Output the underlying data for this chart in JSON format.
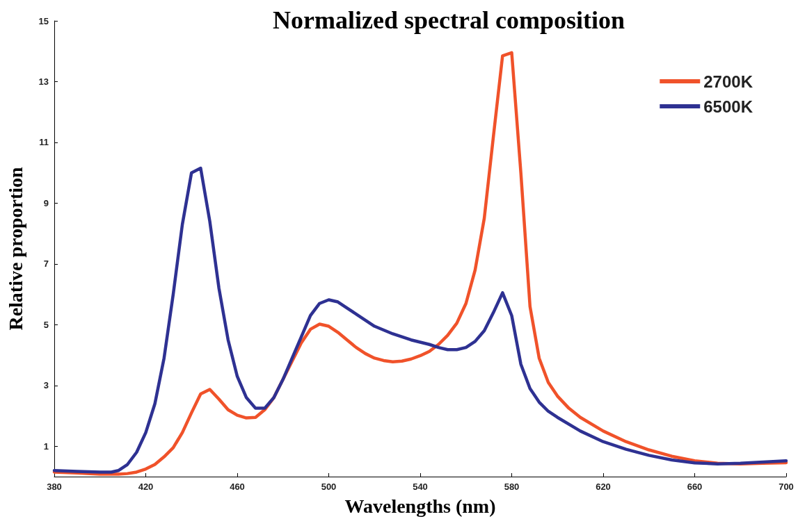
{
  "chart_data": {
    "type": "line",
    "title": "Normalized spectral composition",
    "xlabel": "Wavelengths (nm)",
    "ylabel": "Relative proportion",
    "xlim": [
      380,
      700
    ],
    "xticks": [
      380,
      420,
      460,
      500,
      540,
      580,
      620,
      660,
      700
    ],
    "ylim": [
      0,
      15
    ],
    "yticks": [
      1,
      3,
      5,
      7,
      9,
      11,
      13,
      15
    ],
    "grid": false,
    "legend": "top right",
    "marker": "none",
    "line_style": "solid",
    "series": [
      {
        "name": "2700K",
        "color": "#f0522a",
        "x": [
          380,
          390,
          400,
          408,
          412,
          416,
          420,
          424,
          428,
          432,
          436,
          440,
          444,
          448,
          452,
          456,
          460,
          464,
          468,
          472,
          476,
          480,
          484,
          488,
          492,
          496,
          500,
          504,
          508,
          512,
          516,
          520,
          524,
          528,
          532,
          536,
          540,
          544,
          548,
          552,
          556,
          560,
          564,
          568,
          572,
          576,
          580,
          584,
          588,
          592,
          596,
          600,
          605,
          610,
          620,
          630,
          640,
          650,
          660,
          670,
          680,
          690,
          700
        ],
        "values": [
          0.15,
          0.12,
          0.08,
          0.08,
          0.1,
          0.15,
          0.25,
          0.4,
          0.65,
          0.95,
          1.45,
          2.1,
          2.72,
          2.87,
          2.55,
          2.2,
          2.02,
          1.93,
          1.95,
          2.2,
          2.6,
          3.2,
          3.8,
          4.4,
          4.85,
          5.02,
          4.95,
          4.75,
          4.5,
          4.25,
          4.05,
          3.9,
          3.82,
          3.78,
          3.8,
          3.87,
          3.98,
          4.12,
          4.35,
          4.65,
          5.05,
          5.7,
          6.8,
          8.5,
          11.2,
          13.85,
          13.95,
          10.0,
          5.6,
          3.9,
          3.1,
          2.65,
          2.25,
          1.95,
          1.5,
          1.15,
          0.88,
          0.67,
          0.52,
          0.44,
          0.42,
          0.44,
          0.46
        ]
      },
      {
        "name": "6500K",
        "color": "#2e3192",
        "x": [
          380,
          390,
          400,
          405,
          408,
          412,
          416,
          420,
          424,
          428,
          432,
          436,
          440,
          444,
          448,
          452,
          456,
          460,
          464,
          468,
          472,
          476,
          480,
          484,
          488,
          492,
          496,
          500,
          504,
          508,
          512,
          516,
          520,
          528,
          536,
          544,
          548,
          552,
          556,
          560,
          564,
          568,
          572,
          576,
          580,
          584,
          588,
          592,
          596,
          600,
          610,
          620,
          630,
          640,
          650,
          660,
          670,
          680,
          690,
          700
        ],
        "values": [
          0.2,
          0.17,
          0.15,
          0.15,
          0.2,
          0.4,
          0.8,
          1.45,
          2.4,
          3.9,
          6.0,
          8.3,
          10.0,
          10.15,
          8.4,
          6.2,
          4.5,
          3.3,
          2.6,
          2.25,
          2.25,
          2.6,
          3.2,
          3.9,
          4.6,
          5.3,
          5.7,
          5.82,
          5.75,
          5.55,
          5.35,
          5.15,
          4.95,
          4.7,
          4.5,
          4.35,
          4.25,
          4.18,
          4.18,
          4.25,
          4.45,
          4.8,
          5.4,
          6.05,
          5.3,
          3.7,
          2.9,
          2.45,
          2.15,
          1.95,
          1.5,
          1.15,
          0.9,
          0.7,
          0.55,
          0.45,
          0.42,
          0.44,
          0.48,
          0.52
        ]
      }
    ]
  }
}
